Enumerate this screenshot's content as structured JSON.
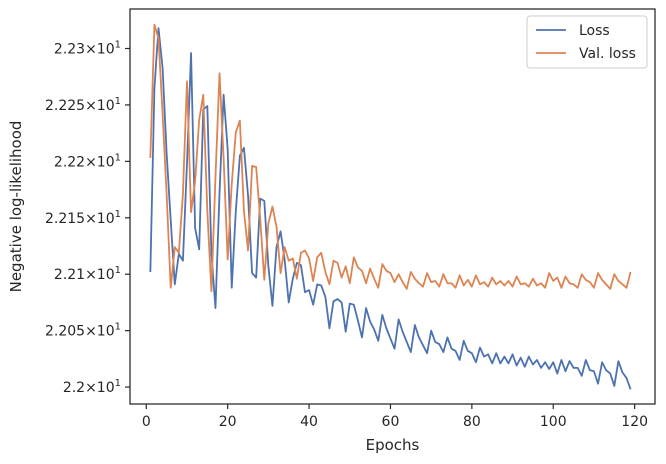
{
  "chart_data": {
    "type": "line",
    "title": "",
    "xlabel": "Epochs",
    "ylabel": "Negative log-likelihood",
    "xlim": [
      -4,
      125
    ],
    "ylim": [
      21.985,
      22.335
    ],
    "xticks": [
      0,
      20,
      40,
      60,
      80,
      100,
      120
    ],
    "xtick_labels": [
      "0",
      "20",
      "40",
      "60",
      "80",
      "100",
      "120"
    ],
    "yticks": [
      22.0,
      22.05,
      22.1,
      22.15,
      22.2,
      22.25,
      22.3
    ],
    "ytick_labels": [
      {
        "mant": "2.2",
        "exp": "1"
      },
      {
        "mant": "2.205",
        "exp": "1"
      },
      {
        "mant": "2.21",
        "exp": "1"
      },
      {
        "mant": "2.215",
        "exp": "1"
      },
      {
        "mant": "2.22",
        "exp": "1"
      },
      {
        "mant": "2.225",
        "exp": "1"
      },
      {
        "mant": "2.23",
        "exp": "1"
      }
    ],
    "grid": false,
    "legend_position": "top-right",
    "series": [
      {
        "name": "Loss",
        "color": "#4c72b0",
        "x": [
          1,
          2,
          3,
          4,
          5,
          6,
          7,
          8,
          9,
          10,
          11,
          12,
          13,
          14,
          15,
          16,
          17,
          18,
          19,
          20,
          21,
          22,
          23,
          24,
          25,
          26,
          27,
          28,
          29,
          30,
          31,
          32,
          33,
          34,
          35,
          36,
          37,
          38,
          39,
          40,
          41,
          42,
          43,
          44,
          45,
          46,
          47,
          48,
          49,
          50,
          51,
          52,
          53,
          54,
          55,
          56,
          57,
          58,
          59,
          60,
          61,
          62,
          63,
          64,
          65,
          66,
          67,
          68,
          69,
          70,
          71,
          72,
          73,
          74,
          75,
          76,
          77,
          78,
          79,
          80,
          81,
          82,
          83,
          84,
          85,
          86,
          87,
          88,
          89,
          90,
          91,
          92,
          93,
          94,
          95,
          96,
          97,
          98,
          99,
          100,
          101,
          102,
          103,
          104,
          105,
          106,
          107,
          108,
          109,
          110,
          111,
          112,
          113,
          114,
          115,
          116,
          117,
          118,
          119
        ],
        "values": [
          22.102,
          22.265,
          22.318,
          22.283,
          22.207,
          22.148,
          22.091,
          22.118,
          22.112,
          22.198,
          22.296,
          22.141,
          22.122,
          22.246,
          22.249,
          22.118,
          22.07,
          22.172,
          22.259,
          22.211,
          22.088,
          22.156,
          22.205,
          22.212,
          22.17,
          22.101,
          22.097,
          22.167,
          22.165,
          22.107,
          22.072,
          22.124,
          22.138,
          22.113,
          22.075,
          22.096,
          22.11,
          22.108,
          22.084,
          22.086,
          22.073,
          22.091,
          22.09,
          22.08,
          22.052,
          22.076,
          22.078,
          22.075,
          22.049,
          22.074,
          22.073,
          22.059,
          22.044,
          22.07,
          22.058,
          22.051,
          22.041,
          22.064,
          22.052,
          22.043,
          22.034,
          22.06,
          22.049,
          22.04,
          22.031,
          22.055,
          22.044,
          22.037,
          22.03,
          22.05,
          22.04,
          22.038,
          22.031,
          22.044,
          22.034,
          22.032,
          22.024,
          22.041,
          22.032,
          22.03,
          22.022,
          22.035,
          22.027,
          22.029,
          22.021,
          22.03,
          22.021,
          22.027,
          22.021,
          22.029,
          22.019,
          22.026,
          22.018,
          22.027,
          22.02,
          22.024,
          22.017,
          22.022,
          22.016,
          22.022,
          22.012,
          22.024,
          22.014,
          22.023,
          22.017,
          22.017,
          22.01,
          22.024,
          22.015,
          22.014,
          22.003,
          22.022,
          22.015,
          22.012,
          22.001,
          22.023,
          22.013,
          22.008,
          21.998
        ]
      },
      {
        "name": "Val. loss",
        "color": "#dd8452",
        "x": [
          1,
          2,
          3,
          4,
          5,
          6,
          7,
          8,
          9,
          10,
          11,
          12,
          13,
          14,
          15,
          16,
          17,
          18,
          19,
          20,
          21,
          22,
          23,
          24,
          25,
          26,
          27,
          28,
          29,
          30,
          31,
          32,
          33,
          34,
          35,
          36,
          37,
          38,
          39,
          40,
          41,
          42,
          43,
          44,
          45,
          46,
          47,
          48,
          49,
          50,
          51,
          52,
          53,
          54,
          55,
          56,
          57,
          58,
          59,
          60,
          61,
          62,
          63,
          64,
          65,
          66,
          67,
          68,
          69,
          70,
          71,
          72,
          73,
          74,
          75,
          76,
          77,
          78,
          79,
          80,
          81,
          82,
          83,
          84,
          85,
          86,
          87,
          88,
          89,
          90,
          91,
          92,
          93,
          94,
          95,
          96,
          97,
          98,
          99,
          100,
          101,
          102,
          103,
          104,
          105,
          106,
          107,
          108,
          109,
          110,
          111,
          112,
          113,
          114,
          115,
          116,
          117,
          118,
          119
        ],
        "values": [
          22.203,
          22.321,
          22.309,
          22.243,
          22.171,
          22.088,
          22.124,
          22.119,
          22.171,
          22.271,
          22.155,
          22.182,
          22.237,
          22.259,
          22.156,
          22.085,
          22.186,
          22.278,
          22.203,
          22.113,
          22.18,
          22.226,
          22.236,
          22.156,
          22.121,
          22.196,
          22.195,
          22.149,
          22.095,
          22.145,
          22.16,
          22.142,
          22.101,
          22.124,
          22.112,
          22.114,
          22.096,
          22.119,
          22.121,
          22.114,
          22.094,
          22.115,
          22.119,
          22.102,
          22.091,
          22.112,
          22.11,
          22.097,
          22.107,
          22.092,
          22.115,
          22.106,
          22.103,
          22.092,
          22.105,
          22.096,
          22.088,
          22.109,
          22.103,
          22.101,
          22.093,
          22.1,
          22.093,
          22.087,
          22.102,
          22.096,
          22.092,
          22.089,
          22.101,
          22.093,
          22.094,
          22.089,
          22.1,
          22.092,
          22.092,
          22.088,
          22.099,
          22.09,
          22.095,
          22.089,
          22.099,
          22.091,
          22.093,
          22.089,
          22.097,
          22.091,
          22.094,
          22.09,
          22.094,
          22.089,
          22.098,
          22.091,
          22.092,
          22.089,
          22.096,
          22.09,
          22.092,
          22.088,
          22.101,
          22.094,
          22.097,
          22.088,
          22.098,
          22.092,
          22.091,
          22.088,
          22.1,
          22.095,
          22.093,
          22.088,
          22.101,
          22.095,
          22.091,
          22.087,
          22.1,
          22.094,
          22.091,
          22.088,
          22.102
        ]
      }
    ]
  }
}
